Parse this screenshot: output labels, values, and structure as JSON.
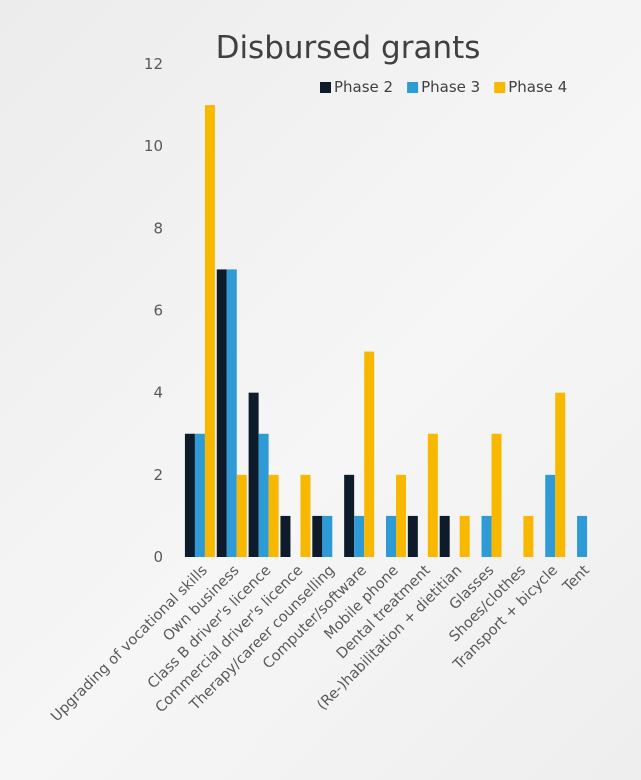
{
  "chart_data": {
    "type": "bar",
    "title": "Disbursed grants",
    "xlabel": "",
    "ylabel": "",
    "ylim": [
      0,
      12
    ],
    "yticks": [
      0,
      2,
      4,
      6,
      8,
      10,
      12
    ],
    "grid": false,
    "legend_position": "top-right",
    "categories": [
      "Upgrading of vocational skills",
      "Own business",
      "Class B driver's licence",
      "Commercial driver's licence",
      "Therapy/career counselling",
      "Computer/software",
      "Mobile phone",
      "Dental treatment",
      "(Re-)habilitation + dietitian",
      "Glasses",
      "Shoes/clothes",
      "Transport + bicycle",
      "Tent"
    ],
    "series": [
      {
        "name": "Phase 2",
        "color": "#0d1b2a",
        "values": [
          3,
          7,
          4,
          1,
          1,
          2,
          0,
          1,
          1,
          0,
          0,
          0,
          0
        ]
      },
      {
        "name": "Phase 3",
        "color": "#2e9bd6",
        "values": [
          3,
          7,
          3,
          0,
          1,
          1,
          1,
          0,
          0,
          1,
          0,
          2,
          1
        ]
      },
      {
        "name": "Phase 4",
        "color": "#f9b800",
        "values": [
          11,
          2,
          2,
          2,
          0,
          5,
          2,
          3,
          1,
          3,
          1,
          4,
          0
        ]
      }
    ]
  }
}
